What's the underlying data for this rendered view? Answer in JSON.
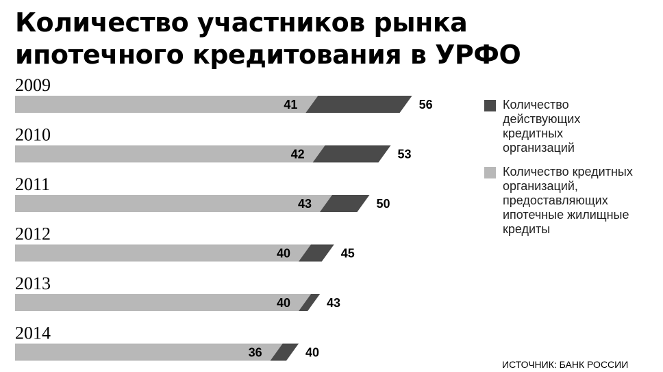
{
  "title": "Количество участников рынка\nипотечного кредитования в УРФО",
  "source": "ИСТОЧНИК: БАНК РОССИИ",
  "colors": {
    "mortgage": "#b8b8b8",
    "active": "#4a4a4a"
  },
  "chart_data": {
    "type": "bar",
    "orientation": "horizontal",
    "stacked": false,
    "categories": [
      "2009",
      "2010",
      "2011",
      "2012",
      "2013",
      "2014"
    ],
    "series": [
      {
        "name": "Количество кредитных организаций, предоставляющих ипотечные жилищные кредиты",
        "values": [
          41,
          42,
          43,
          40,
          40,
          36
        ]
      },
      {
        "name": "Количество действующих кредитных организаций",
        "values": [
          56,
          53,
          50,
          45,
          43,
          40
        ]
      }
    ],
    "legend": [
      {
        "label": "Количество\nдействующих\nкредитных\nорганизаций",
        "color": "#4a4a4a"
      },
      {
        "label": "Количество кредитных\nорганизаций,\nпредоставляющих\nипотечные жилищные\nкредиты",
        "color": "#b8b8b8"
      }
    ],
    "legend_position": "right",
    "grid": false,
    "xlim": [
      0,
      60
    ]
  }
}
